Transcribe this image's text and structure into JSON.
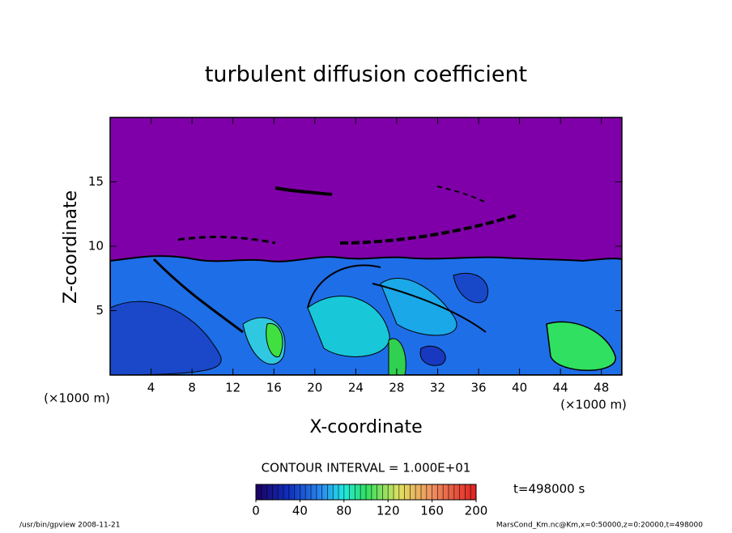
{
  "chart_data": {
    "type": "contour",
    "title": "turbulent diffusion coefficient",
    "xlabel": "X-coordinate",
    "ylabel": "Z-coordinate",
    "xunit": "(×1000 m)",
    "yunit": "(×1000 m)",
    "xlim": [
      0,
      50
    ],
    "ylim": [
      0,
      20
    ],
    "xticks": [
      4,
      8,
      12,
      16,
      20,
      24,
      28,
      32,
      36,
      40,
      44,
      48
    ],
    "yticks": [
      5,
      10,
      15
    ],
    "colorbar": {
      "range": [
        0,
        200
      ],
      "ticks": [
        0,
        40,
        80,
        120,
        160,
        200
      ]
    },
    "contour_interval": "CONTOUR INTERVAL = 1.000E+01",
    "time": "t=498000 s",
    "footer_left": "/usr/bin/gpview  2008-11-21",
    "footer_right": "MarsCond_Km.nc@Km,x=0:50000,z=0:20000,t=498000"
  }
}
